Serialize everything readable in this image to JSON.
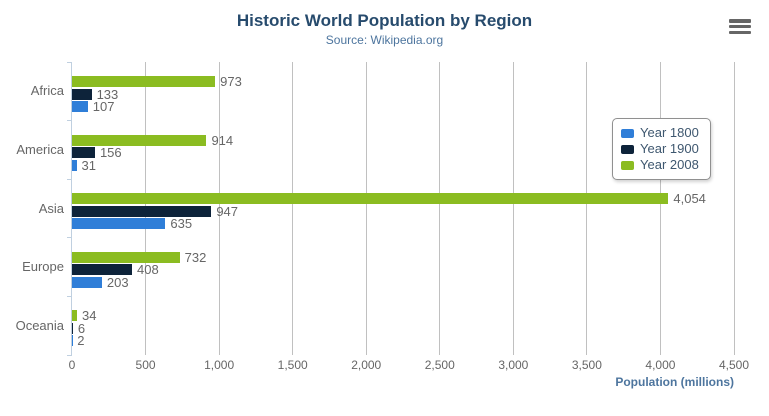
{
  "chart_data": {
    "type": "bar",
    "orientation": "horizontal",
    "title": "Historic World Population by Region",
    "subtitle": "Source: Wikipedia.org",
    "categories": [
      "Africa",
      "America",
      "Asia",
      "Europe",
      "Oceania"
    ],
    "series": [
      {
        "name": "Year 1800",
        "color": "#2f7ed8",
        "values": [
          107,
          31,
          635,
          203,
          2
        ]
      },
      {
        "name": "Year 1900",
        "color": "#0d233a",
        "values": [
          133,
          156,
          947,
          408,
          6
        ]
      },
      {
        "name": "Year 2008",
        "color": "#8bbc21",
        "values": [
          973,
          914,
          4054,
          732,
          34
        ]
      }
    ],
    "bar_display_order_top_to_bottom": [
      "Year 2008",
      "Year 1900",
      "Year 1800"
    ],
    "xlabel": "Population (millions)",
    "xlim": [
      0,
      4500
    ],
    "xticks": [
      0,
      500,
      1000,
      1500,
      2000,
      2500,
      3000,
      3500,
      4000,
      4500
    ],
    "grid": true,
    "data_labels": true,
    "legend_position": "right"
  },
  "context_menu": {
    "icon": "hamburger-menu",
    "aria_label": "Chart context menu"
  },
  "styles": {
    "background": "#ffffff",
    "title_color": "#274b6d",
    "subtitle_color": "#4d759e",
    "axis_title_color": "#4d759e",
    "label_color": "#666666",
    "grid_color": "#c0c0c0",
    "axis_line_color": "#c0d0e0",
    "legend_text_color": "#3e576f",
    "legend_border_color": "#909090",
    "menu_icon_color": "#666666"
  }
}
